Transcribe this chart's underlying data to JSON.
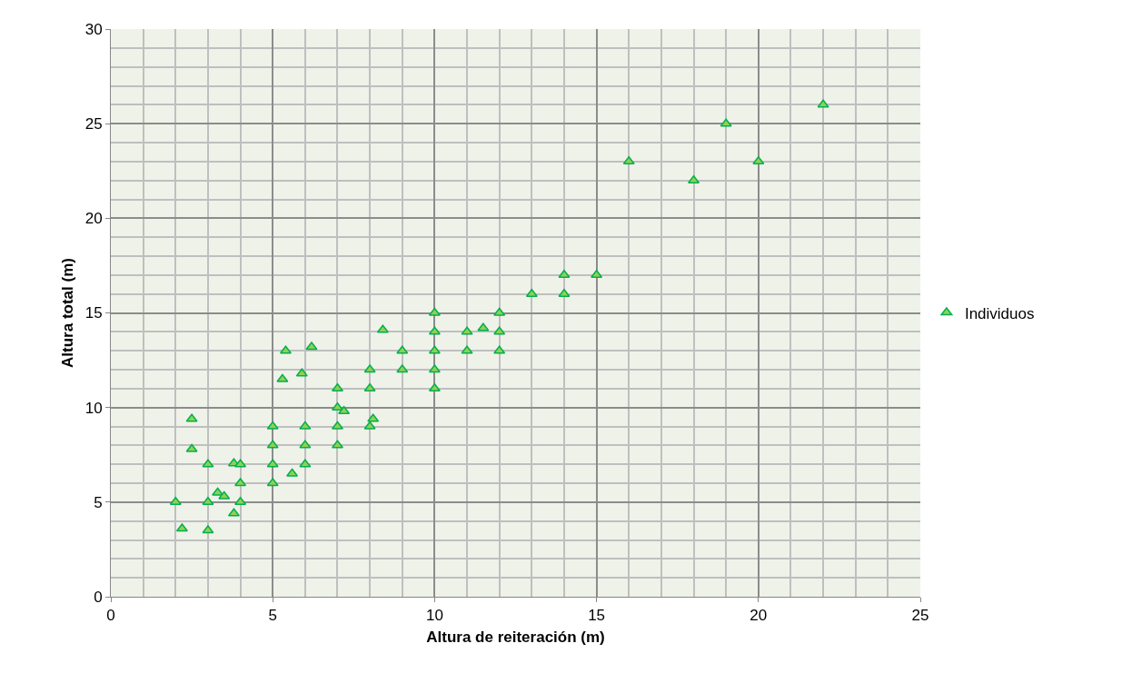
{
  "chart_data": {
    "type": "scatter",
    "xlabel": "Altura de reiteración (m)",
    "ylabel": "Altura total (m)",
    "series": [
      {
        "name": "Individuos",
        "color": "#00b050",
        "x": [
          2,
          2.2,
          2.5,
          2.5,
          3,
          3,
          3,
          3.3,
          3.5,
          3.8,
          3.8,
          4,
          4,
          4,
          5,
          5,
          5,
          5,
          5.3,
          5.4,
          5.6,
          5.9,
          6,
          6,
          6,
          6.2,
          7,
          7,
          7,
          7,
          7.2,
          8,
          8,
          8,
          8.1,
          8.4,
          9,
          9,
          10,
          10,
          10,
          10,
          10,
          11,
          11,
          11.5,
          12,
          12,
          12,
          13,
          14,
          14,
          15,
          16,
          18,
          19,
          20,
          22
        ],
        "values": [
          5,
          3.6,
          9.4,
          7.8,
          7,
          5,
          3.5,
          5.5,
          5.3,
          7.05,
          4.4,
          7,
          6,
          5,
          9,
          8,
          7,
          6,
          11.5,
          13,
          6.5,
          11.8,
          9,
          8,
          7,
          13.2,
          11,
          10,
          9,
          8,
          9.8,
          12,
          11,
          9,
          9.4,
          14.1,
          13,
          12,
          15,
          14,
          13,
          12,
          11,
          14,
          13,
          14.2,
          15,
          14,
          13,
          16,
          17,
          16,
          17,
          23,
          22,
          25,
          23,
          26
        ]
      }
    ],
    "xlim": [
      0,
      25
    ],
    "ylim": [
      0,
      30
    ],
    "xticks": [
      0,
      5,
      10,
      15,
      20,
      25
    ],
    "yticks": [
      0,
      5,
      10,
      15,
      20,
      25,
      30
    ],
    "grid": true,
    "legend": "right",
    "marker": "triangle"
  }
}
